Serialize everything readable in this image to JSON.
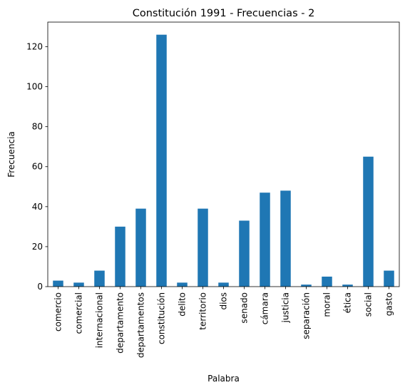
{
  "chart_data": {
    "type": "bar",
    "title": "Constitución 1991 - Frecuencias - 2",
    "xlabel": "Palabra",
    "ylabel": "Frecuencia",
    "categories": [
      "comercio",
      "comercial",
      "internacional",
      "departamento",
      "departamentos",
      "constitución",
      "delito",
      "territorio",
      "dios",
      "senado",
      "cámara",
      "justicia",
      "separación",
      "moral",
      "ética",
      "social",
      "gasto"
    ],
    "values": [
      3,
      2,
      8,
      30,
      39,
      126,
      2,
      39,
      2,
      33,
      47,
      48,
      1,
      5,
      1,
      65,
      8
    ],
    "ylim": [
      0,
      132.3
    ],
    "yticks": [
      0,
      20,
      40,
      60,
      80,
      100,
      120
    ],
    "grid": false,
    "bar_color": "#1f77b4"
  }
}
